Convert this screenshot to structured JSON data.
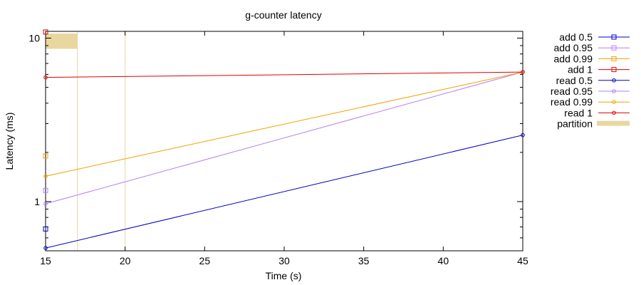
{
  "chart_data": {
    "type": "line",
    "title": "g-counter latency",
    "xlabel": "Time (s)",
    "ylabel": "Latency (ms)",
    "xlim": [
      15,
      45
    ],
    "ylim": [
      0.5,
      11
    ],
    "yscale": "log",
    "grid": false,
    "legend_position": "right",
    "x_ticks": [
      15,
      20,
      25,
      30,
      35,
      40,
      45
    ],
    "y_ticks": [
      1,
      10
    ],
    "series": [
      {
        "name": "add 0.5",
        "color": "#0000c8",
        "marker": "square",
        "points": [
          [
            15,
            0.68
          ]
        ]
      },
      {
        "name": "add 0.95",
        "color": "#b77ff0",
        "marker": "square",
        "points": [
          [
            15,
            1.17
          ]
        ]
      },
      {
        "name": "add 0.99",
        "color": "#f0a000",
        "marker": "square",
        "points": [
          [
            15,
            1.9
          ]
        ]
      },
      {
        "name": "add 1",
        "color": "#e00000",
        "marker": "square",
        "points": [
          [
            15,
            10.9
          ]
        ]
      },
      {
        "name": "read 0.5",
        "color": "#0000c8",
        "marker": "circle",
        "points": [
          [
            15,
            0.52
          ],
          [
            45,
            2.55
          ]
        ]
      },
      {
        "name": "read 0.95",
        "color": "#b77ff0",
        "marker": "circle",
        "points": [
          [
            15,
            0.97
          ],
          [
            45,
            6.2
          ]
        ]
      },
      {
        "name": "read 0.99",
        "color": "#f0a000",
        "marker": "circle",
        "points": [
          [
            15,
            1.43
          ],
          [
            45,
            6.2
          ]
        ]
      },
      {
        "name": "read 1",
        "color": "#e00000",
        "marker": "circle",
        "points": [
          [
            15,
            5.75
          ],
          [
            45,
            6.2
          ]
        ]
      }
    ],
    "partition": {
      "name": "partition",
      "color": "#e8d8a0",
      "intervals": [
        [
          15,
          17.0
        ]
      ],
      "vertical_lines": [
        17.0,
        20.0
      ]
    }
  }
}
